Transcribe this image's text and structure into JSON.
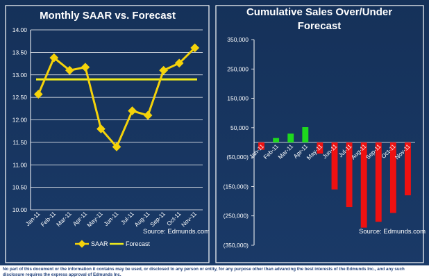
{
  "chart_data": [
    {
      "type": "line",
      "title": "Monthly SAAR vs. Forecast",
      "categories": [
        "Jan-11",
        "Feb-11",
        "Mar-11",
        "Apr-11",
        "May-11",
        "Jun-11",
        "Jul-11",
        "Aug-11",
        "Sep-11",
        "Oct-11",
        "Nov-11"
      ],
      "series": [
        {
          "name": "SAAR",
          "values": [
            12.57,
            13.38,
            13.1,
            13.17,
            11.8,
            11.4,
            12.2,
            12.1,
            13.1,
            13.26,
            13.6
          ],
          "color": "#f5d30a"
        },
        {
          "name": "Forecast",
          "values": [
            12.9,
            12.9,
            12.9,
            12.9,
            12.9,
            12.9,
            12.9,
            12.9,
            12.9,
            12.9,
            12.9
          ],
          "color": "#f0ec1c"
        }
      ],
      "ylim": [
        10.0,
        14.0
      ],
      "yticks": [
        "10.00",
        "10.50",
        "11.00",
        "11.50",
        "12.00",
        "12.50",
        "13.00",
        "13.50",
        "14.00"
      ],
      "legend": "bottom",
      "annotation": "Source: Edmunds.com"
    },
    {
      "type": "bar",
      "title_lines": [
        "Cumulative Sales Over/Under",
        "Forecast"
      ],
      "categories": [
        "Jan-11",
        "Feb-11",
        "Mar-11",
        "Apr-11",
        "May-11",
        "Jun-11",
        "Jul-11",
        "Aug-11",
        "Sep-11",
        "Oct-11",
        "Nov-11"
      ],
      "values": [
        -25000,
        15000,
        30000,
        52000,
        -38000,
        -160000,
        -220000,
        -290000,
        -270000,
        -240000,
        -180000
      ],
      "ylim": [
        -350000,
        350000
      ],
      "yticks": [
        "(350,000)",
        "(250,000)",
        "(150,000)",
        "(50,000)",
        "50,000",
        "150,000",
        "250,000",
        "350,000"
      ],
      "positive_color": "#1ed81e",
      "negative_color": "#ee1111",
      "annotation": "Source: Edmunds.com"
    }
  ],
  "footer": {
    "disclaimer": "No part of this document or the information it contains may be used, or disclosed to any person or entity, for any purpose other than advancing the best interests of the Edmunds Inc., and any such disclosure requires the express approval of Edmunds Inc."
  }
}
